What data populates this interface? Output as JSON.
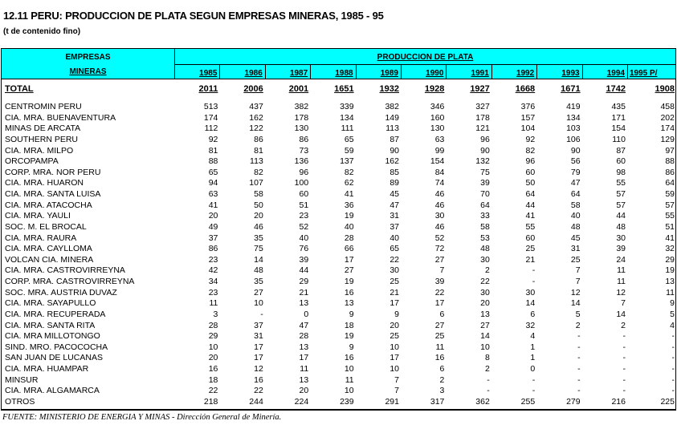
{
  "title": "12.11  PERU: PRODUCCION DE PLATA SEGUN EMPRESAS MINERAS, 1985 - 95",
  "subtitle": "(t de contenido fino)",
  "header": {
    "col1_top": "EMPRESAS",
    "col1_bottom": "MINERAS",
    "group": "PRODUCCION DE PLATA",
    "years": [
      "1985",
      "1986",
      "1987",
      "1988",
      "1989",
      "1990",
      "1991",
      "1992",
      "1993",
      "1994",
      "1995 P/"
    ]
  },
  "total": {
    "name": "TOTAL",
    "values": [
      "2011",
      "2006",
      "2001",
      "1651",
      "1932",
      "1928",
      "1927",
      "1668",
      "1671",
      "1742",
      "1908"
    ]
  },
  "rows": [
    {
      "name": "CENTROMIN PERU",
      "values": [
        "513",
        "437",
        "382",
        "339",
        "382",
        "346",
        "327",
        "376",
        "419",
        "435",
        "458"
      ]
    },
    {
      "name": "CIA. MRA. BUENAVENTURA",
      "values": [
        "174",
        "162",
        "178",
        "134",
        "149",
        "160",
        "178",
        "157",
        "134",
        "171",
        "202"
      ]
    },
    {
      "name": "MINAS DE ARCATA",
      "values": [
        "112",
        "122",
        "130",
        "111",
        "113",
        "130",
        "121",
        "104",
        "103",
        "154",
        "174"
      ]
    },
    {
      "name": "SOUTHERN PERU",
      "values": [
        "92",
        "86",
        "86",
        "65",
        "87",
        "63",
        "96",
        "92",
        "106",
        "110",
        "129"
      ]
    },
    {
      "name": "CIA. MRA. MILPO",
      "values": [
        "81",
        "81",
        "73",
        "59",
        "90",
        "99",
        "90",
        "82",
        "90",
        "87",
        "97"
      ]
    },
    {
      "name": "ORCOPAMPA",
      "values": [
        "88",
        "113",
        "136",
        "137",
        "162",
        "154",
        "132",
        "96",
        "56",
        "60",
        "88"
      ]
    },
    {
      "name": "CORP. MRA. NOR PERU",
      "values": [
        "65",
        "82",
        "96",
        "82",
        "85",
        "84",
        "75",
        "60",
        "79",
        "98",
        "86"
      ]
    },
    {
      "name": "CIA. MRA. HUARON",
      "values": [
        "94",
        "107",
        "100",
        "62",
        "89",
        "74",
        "39",
        "50",
        "47",
        "55",
        "64"
      ]
    },
    {
      "name": "CIA. MRA. SANTA LUISA",
      "values": [
        "63",
        "58",
        "60",
        "41",
        "45",
        "46",
        "70",
        "64",
        "64",
        "57",
        "59"
      ]
    },
    {
      "name": "CIA. MRA. ATACOCHA",
      "values": [
        "41",
        "50",
        "51",
        "36",
        "47",
        "46",
        "64",
        "44",
        "58",
        "57",
        "57"
      ]
    },
    {
      "name": "CIA. MRA. YAULI",
      "values": [
        "20",
        "20",
        "23",
        "19",
        "31",
        "30",
        "33",
        "41",
        "40",
        "44",
        "55"
      ]
    },
    {
      "name": "SOC. M. EL BROCAL",
      "values": [
        "49",
        "46",
        "52",
        "40",
        "37",
        "46",
        "58",
        "55",
        "48",
        "48",
        "51"
      ]
    },
    {
      "name": "CIA. MRA. RAURA",
      "values": [
        "37",
        "35",
        "40",
        "28",
        "40",
        "52",
        "53",
        "60",
        "45",
        "30",
        "41"
      ]
    },
    {
      "name": "CIA. MRA. CAYLLOMA",
      "values": [
        "86",
        "75",
        "76",
        "66",
        "65",
        "72",
        "48",
        "25",
        "31",
        "39",
        "32"
      ]
    },
    {
      "name": "VOLCAN CIA. MINERA",
      "values": [
        "23",
        "14",
        "39",
        "17",
        "22",
        "27",
        "30",
        "21",
        "25",
        "24",
        "29"
      ]
    },
    {
      "name": "CIA. MRA. CASTROVIRREYNA",
      "values": [
        "42",
        "48",
        "44",
        "27",
        "30",
        "7",
        "2",
        "-",
        "7",
        "11",
        "19"
      ]
    },
    {
      "name": "CORP. MRA. CASTROVIRREYNA",
      "values": [
        "34",
        "35",
        "29",
        "19",
        "25",
        "39",
        "22",
        "-",
        "7",
        "11",
        "13"
      ]
    },
    {
      "name": "SOC. MRA. AUSTRIA DUVAZ",
      "values": [
        "23",
        "27",
        "21",
        "16",
        "21",
        "22",
        "30",
        "30",
        "12",
        "12",
        "11"
      ]
    },
    {
      "name": "CIA. MRA. SAYAPULLO",
      "values": [
        "11",
        "10",
        "13",
        "13",
        "17",
        "17",
        "20",
        "14",
        "14",
        "7",
        "9"
      ]
    },
    {
      "name": "CIA. MRA. RECUPERADA",
      "values": [
        "3",
        "-",
        "0",
        "9",
        "9",
        "6",
        "13",
        "6",
        "5",
        "14",
        "5"
      ]
    },
    {
      "name": "CIA. MRA. SANTA RITA",
      "values": [
        "28",
        "37",
        "47",
        "18",
        "20",
        "27",
        "27",
        "32",
        "2",
        "2",
        "4"
      ]
    },
    {
      "name": "CIA. MRA MILLOTONGO",
      "values": [
        "29",
        "31",
        "28",
        "19",
        "25",
        "25",
        "14",
        "4",
        "-",
        "-",
        "-"
      ]
    },
    {
      "name": "SIND. MRO. PACOCOCHA",
      "values": [
        "10",
        "17",
        "13",
        "9",
        "10",
        "11",
        "10",
        "1",
        "-",
        "-",
        "-"
      ]
    },
    {
      "name": "SAN JUAN DE LUCANAS",
      "values": [
        "20",
        "17",
        "17",
        "16",
        "17",
        "16",
        "8",
        "1",
        "-",
        "-",
        "-"
      ]
    },
    {
      "name": "CIA. MRA. HUAMPAR",
      "values": [
        "16",
        "12",
        "11",
        "10",
        "10",
        "6",
        "2",
        "0",
        "-",
        "-",
        "-"
      ]
    },
    {
      "name": "MINSUR",
      "values": [
        "18",
        "16",
        "13",
        "11",
        "7",
        "2",
        "-",
        "-",
        "-",
        "-",
        "-"
      ]
    },
    {
      "name": "CIA. MRA. ALGAMARCA",
      "values": [
        "22",
        "22",
        "20",
        "10",
        "7",
        "3",
        "-",
        "-",
        "-",
        "-",
        "-"
      ]
    },
    {
      "name": "OTROS",
      "values": [
        "218",
        "244",
        "224",
        "239",
        "291",
        "317",
        "362",
        "255",
        "279",
        "216",
        "225"
      ]
    }
  ],
  "source": "FUENTE: MINISTERIO DE ENERGIA Y MINAS - Dirección General de Minería."
}
